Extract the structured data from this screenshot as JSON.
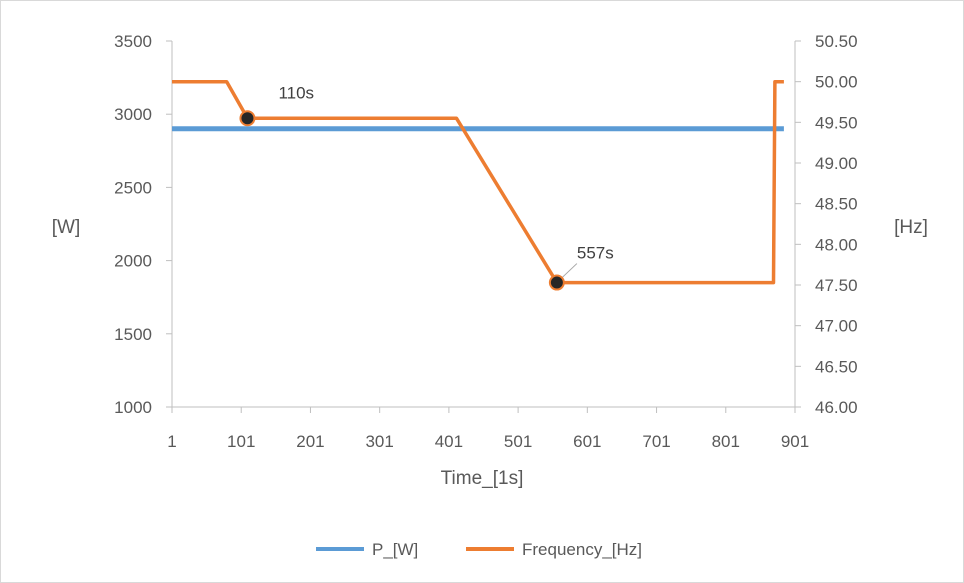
{
  "chart_data": {
    "type": "line",
    "xlabel": "Time_[1s]",
    "ylabel_left": "[W]",
    "ylabel_right": "[Hz]",
    "xlim": [
      1,
      901
    ],
    "ylim_left": [
      1000,
      3500
    ],
    "ylim_right": [
      46.0,
      50.5
    ],
    "x_ticks": [
      1,
      101,
      201,
      301,
      401,
      501,
      601,
      701,
      801,
      901
    ],
    "y_left_ticks": [
      1000,
      1500,
      2000,
      2500,
      3000,
      3500
    ],
    "y_right_ticks": [
      46.0,
      46.5,
      47.0,
      47.5,
      48.0,
      48.5,
      49.0,
      49.5,
      50.0,
      50.5
    ],
    "x_tick_labels": [
      "1",
      "101",
      "201",
      "301",
      "401",
      "501",
      "601",
      "701",
      "801",
      "901"
    ],
    "y_left_tick_labels": [
      "1000",
      "1500",
      "2000",
      "2500",
      "3000",
      "3500"
    ],
    "y_right_tick_labels": [
      "46.00",
      "46.50",
      "47.00",
      "47.50",
      "48.00",
      "48.50",
      "49.00",
      "49.50",
      "50.00",
      "50.50"
    ],
    "grid": false,
    "legend_position": "bottom",
    "series": [
      {
        "name": "P_[W]",
        "axis": "left",
        "color": "#5B9BD5",
        "x": [
          1,
          100,
          200,
          300,
          400,
          500,
          600,
          700,
          800,
          885
        ],
        "y": [
          2900,
          2900,
          2900,
          2900,
          2900,
          2900,
          2900,
          2900,
          2900,
          2900
        ]
      },
      {
        "name": "Frequency_[Hz]",
        "axis": "right",
        "color": "#ED7D31",
        "x": [
          1,
          80,
          110,
          412,
          557,
          870,
          872,
          885
        ],
        "y": [
          50.0,
          50.0,
          49.55,
          49.55,
          47.53,
          47.53,
          50.0,
          50.0
        ]
      }
    ],
    "annotations": [
      {
        "label": "110s",
        "x": 110,
        "y": 49.55,
        "axis": "right"
      },
      {
        "label": "557s",
        "x": 557,
        "y": 47.53,
        "axis": "right"
      }
    ]
  }
}
